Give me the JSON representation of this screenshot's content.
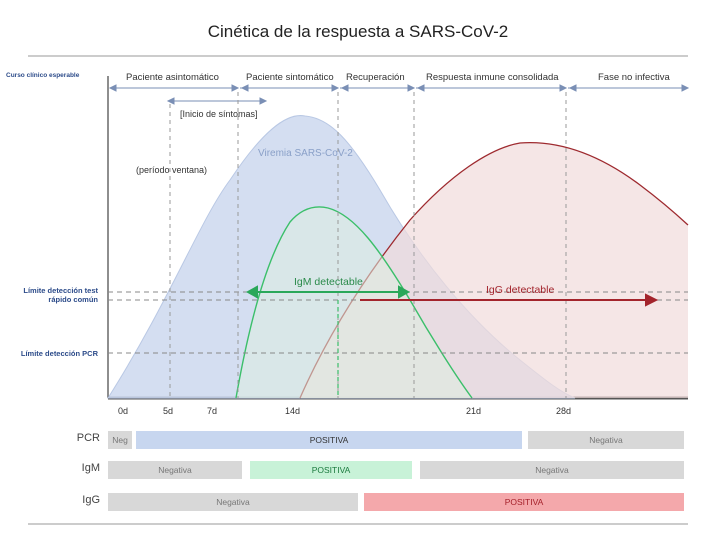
{
  "title": "Cinética de la respuesta a SARS-CoV-2",
  "phases": {
    "course_label": "Curso clínico esperable",
    "asymptomatic": "Paciente asintomático",
    "symptomatic": "Paciente sintomático",
    "recovery": "Recuperación",
    "consolidated": "Respuesta inmune consolidada",
    "non_infective": "Fase no infectiva"
  },
  "annotations": {
    "symptom_onset": "[Inicio de síntomas]",
    "window_period": "(período ventana)",
    "viremia": "Viremia SARS-CoV-2",
    "igm_detectable": "IgM detectable",
    "igg_detectable": "IgG detectable"
  },
  "y_labels": {
    "rapid_test": "Límite detección test rápido común",
    "pcr_limit": "Límite detección PCR"
  },
  "x_ticks": [
    "0d",
    "5d",
    "7d",
    "14d",
    "21d",
    "28d"
  ],
  "rows": {
    "pcr": {
      "label": "PCR",
      "neg_before": "Neg",
      "positive": "POSITIVA",
      "neg_after": "Negativa"
    },
    "igm": {
      "label": "IgM",
      "neg_before": "Negativa",
      "positive": "POSITIVA",
      "neg_after": "Negativa"
    },
    "igg": {
      "label": "IgG",
      "neg_before": "Negativa",
      "positive": "POSITIVA"
    }
  },
  "colors": {
    "viremia_fill": "#cdd8ee",
    "igm_line": "#3bbf6a",
    "igg_line": "#9e2a2f",
    "igg_fill": "#f1dcdc"
  }
}
